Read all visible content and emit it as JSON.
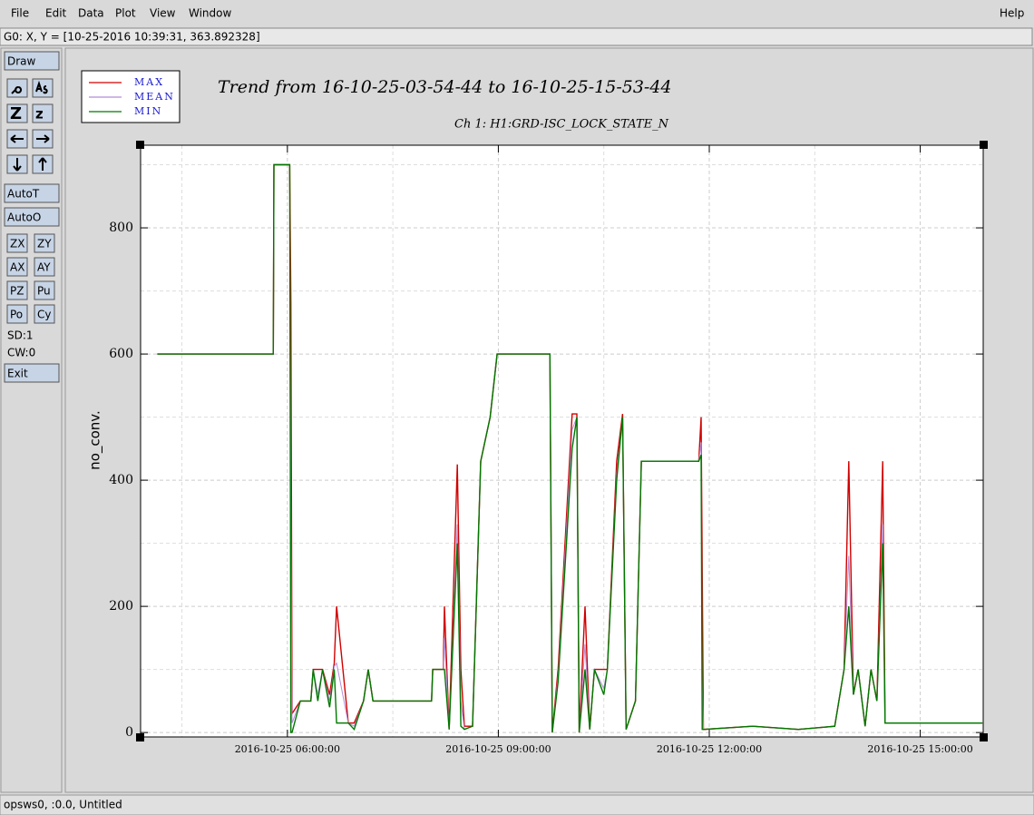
{
  "menu": [
    "File",
    "Edit",
    "Data",
    "Plot",
    "View",
    "Window"
  ],
  "help": "Help",
  "status": "G0: X, Y = [10-25-2016 10:39:31, 363.892328]",
  "toolbar": {
    "draw": "Draw",
    "zoom_in": "Z",
    "zoom_out": "z",
    "autot": "AutoT",
    "autoo": "AutoO",
    "buttons": [
      "ZX",
      "ZY",
      "AX",
      "AY",
      "PZ",
      "Pu",
      "Po",
      "Cy"
    ],
    "sd": "SD:1",
    "cw": "CW:0",
    "exit": "Exit"
  },
  "footer": "opsws0, :0.0, Untitled",
  "chart_data": {
    "type": "line",
    "title": "Trend from 16-10-25-03-54-44 to 16-10-25-15-53-44",
    "subtitle": "Ch 1: H1:GRD-ISC_LOCK_STATE_N",
    "y_label": "no_conv.",
    "x": [
      "2016-10-25 04:09:00",
      "2016-10-25 05:48:00",
      "2016-10-25 05:48:30",
      "2016-10-25 06:02:00",
      "2016-10-25 06:03:00",
      "2016-10-25 06:04:00",
      "2016-10-25 06:11:00",
      "2016-10-25 06:20:00",
      "2016-10-25 06:22:00",
      "2016-10-25 06:26:00",
      "2016-10-25 06:30:00",
      "2016-10-25 06:36:00",
      "2016-10-25 06:40:00",
      "2016-10-25 06:42:00",
      "2016-10-25 06:52:00",
      "2016-10-25 06:57:00",
      "2016-10-25 07:05:00",
      "2016-10-25 07:09:00",
      "2016-10-25 07:13:00",
      "2016-10-25 08:03:00",
      "2016-10-25 08:04:00",
      "2016-10-25 08:13:00",
      "2016-10-25 08:14:00",
      "2016-10-25 08:18:00",
      "2016-10-25 08:25:00",
      "2016-10-25 08:28:00",
      "2016-10-25 08:31:00",
      "2016-10-25 08:38:00",
      "2016-10-25 08:45:00",
      "2016-10-25 08:53:00",
      "2016-10-25 08:59:00",
      "2016-10-25 09:44:00",
      "2016-10-25 09:46:00",
      "2016-10-25 09:51:00",
      "2016-10-25 10:03:00",
      "2016-10-25 10:07:00",
      "2016-10-25 10:09:00",
      "2016-10-25 10:14:00",
      "2016-10-25 10:18:00",
      "2016-10-25 10:22:00",
      "2016-10-25 10:30:00",
      "2016-10-25 10:33:00",
      "2016-10-25 10:41:00",
      "2016-10-25 10:46:00",
      "2016-10-25 10:49:00",
      "2016-10-25 10:57:00",
      "2016-10-25 11:02:00",
      "2016-10-25 11:51:00",
      "2016-10-25 11:53:00",
      "2016-10-25 11:54:00",
      "2016-10-25 11:55:00",
      "2016-10-25 12:37:00",
      "2016-10-25 13:16:00",
      "2016-10-25 13:47:00",
      "2016-10-25 13:55:00",
      "2016-10-25 13:59:00",
      "2016-10-25 14:03:00",
      "2016-10-25 14:07:00",
      "2016-10-25 14:13:00",
      "2016-10-25 14:18:00",
      "2016-10-25 14:23:00",
      "2016-10-25 14:28:00",
      "2016-10-25 14:30:00",
      "2016-10-25 15:53:00"
    ],
    "series": [
      {
        "name": "MAX",
        "color": "#d00000",
        "values": [
          600,
          600,
          900,
          900,
          680,
          30,
          50,
          50,
          100,
          100,
          100,
          60,
          110,
          200,
          15,
          15,
          50,
          100,
          50,
          50,
          100,
          100,
          200,
          5,
          425,
          100,
          10,
          10,
          430,
          500,
          600,
          600,
          0,
          100,
          505,
          505,
          0,
          200,
          5,
          100,
          100,
          100,
          430,
          505,
          5,
          50,
          430,
          430,
          500,
          260,
          5,
          10,
          5,
          10,
          100,
          430,
          60,
          100,
          10,
          100,
          50,
          430,
          15,
          15
        ]
      },
      {
        "name": "MEAN",
        "color": "#b48cd8",
        "values": [
          600,
          600,
          900,
          900,
          300,
          15,
          50,
          50,
          100,
          60,
          100,
          50,
          105,
          110,
          15,
          10,
          50,
          100,
          50,
          50,
          100,
          100,
          150,
          5,
          330,
          50,
          5,
          10,
          430,
          500,
          600,
          600,
          0,
          90,
          480,
          500,
          0,
          140,
          5,
          100,
          70,
          100,
          410,
          500,
          5,
          50,
          430,
          430,
          460,
          80,
          5,
          10,
          5,
          10,
          100,
          280,
          60,
          100,
          10,
          100,
          50,
          330,
          15,
          15
        ]
      },
      {
        "name": "MIN",
        "color": "#007800",
        "values": [
          600,
          600,
          900,
          900,
          0,
          0,
          50,
          50,
          100,
          50,
          100,
          40,
          100,
          15,
          15,
          5,
          50,
          100,
          50,
          50,
          100,
          100,
          100,
          5,
          300,
          10,
          5,
          10,
          430,
          500,
          600,
          600,
          0,
          80,
          450,
          500,
          0,
          100,
          5,
          100,
          60,
          100,
          400,
          500,
          5,
          50,
          430,
          430,
          440,
          5,
          5,
          10,
          5,
          10,
          100,
          200,
          60,
          100,
          10,
          100,
          50,
          300,
          15,
          15
        ]
      }
    ],
    "xlim": [
      "2016-10-25 03:54:44",
      "2016-10-25 15:53:44"
    ],
    "xticks": [
      "2016-10-25 06:00:00",
      "2016-10-25 09:00:00",
      "2016-10-25 12:00:00",
      "2016-10-25 15:00:00"
    ],
    "ylim": [
      -7,
      931
    ],
    "yticks": [
      0,
      200,
      400,
      600,
      800
    ],
    "grid": true,
    "legend": "top-left"
  }
}
